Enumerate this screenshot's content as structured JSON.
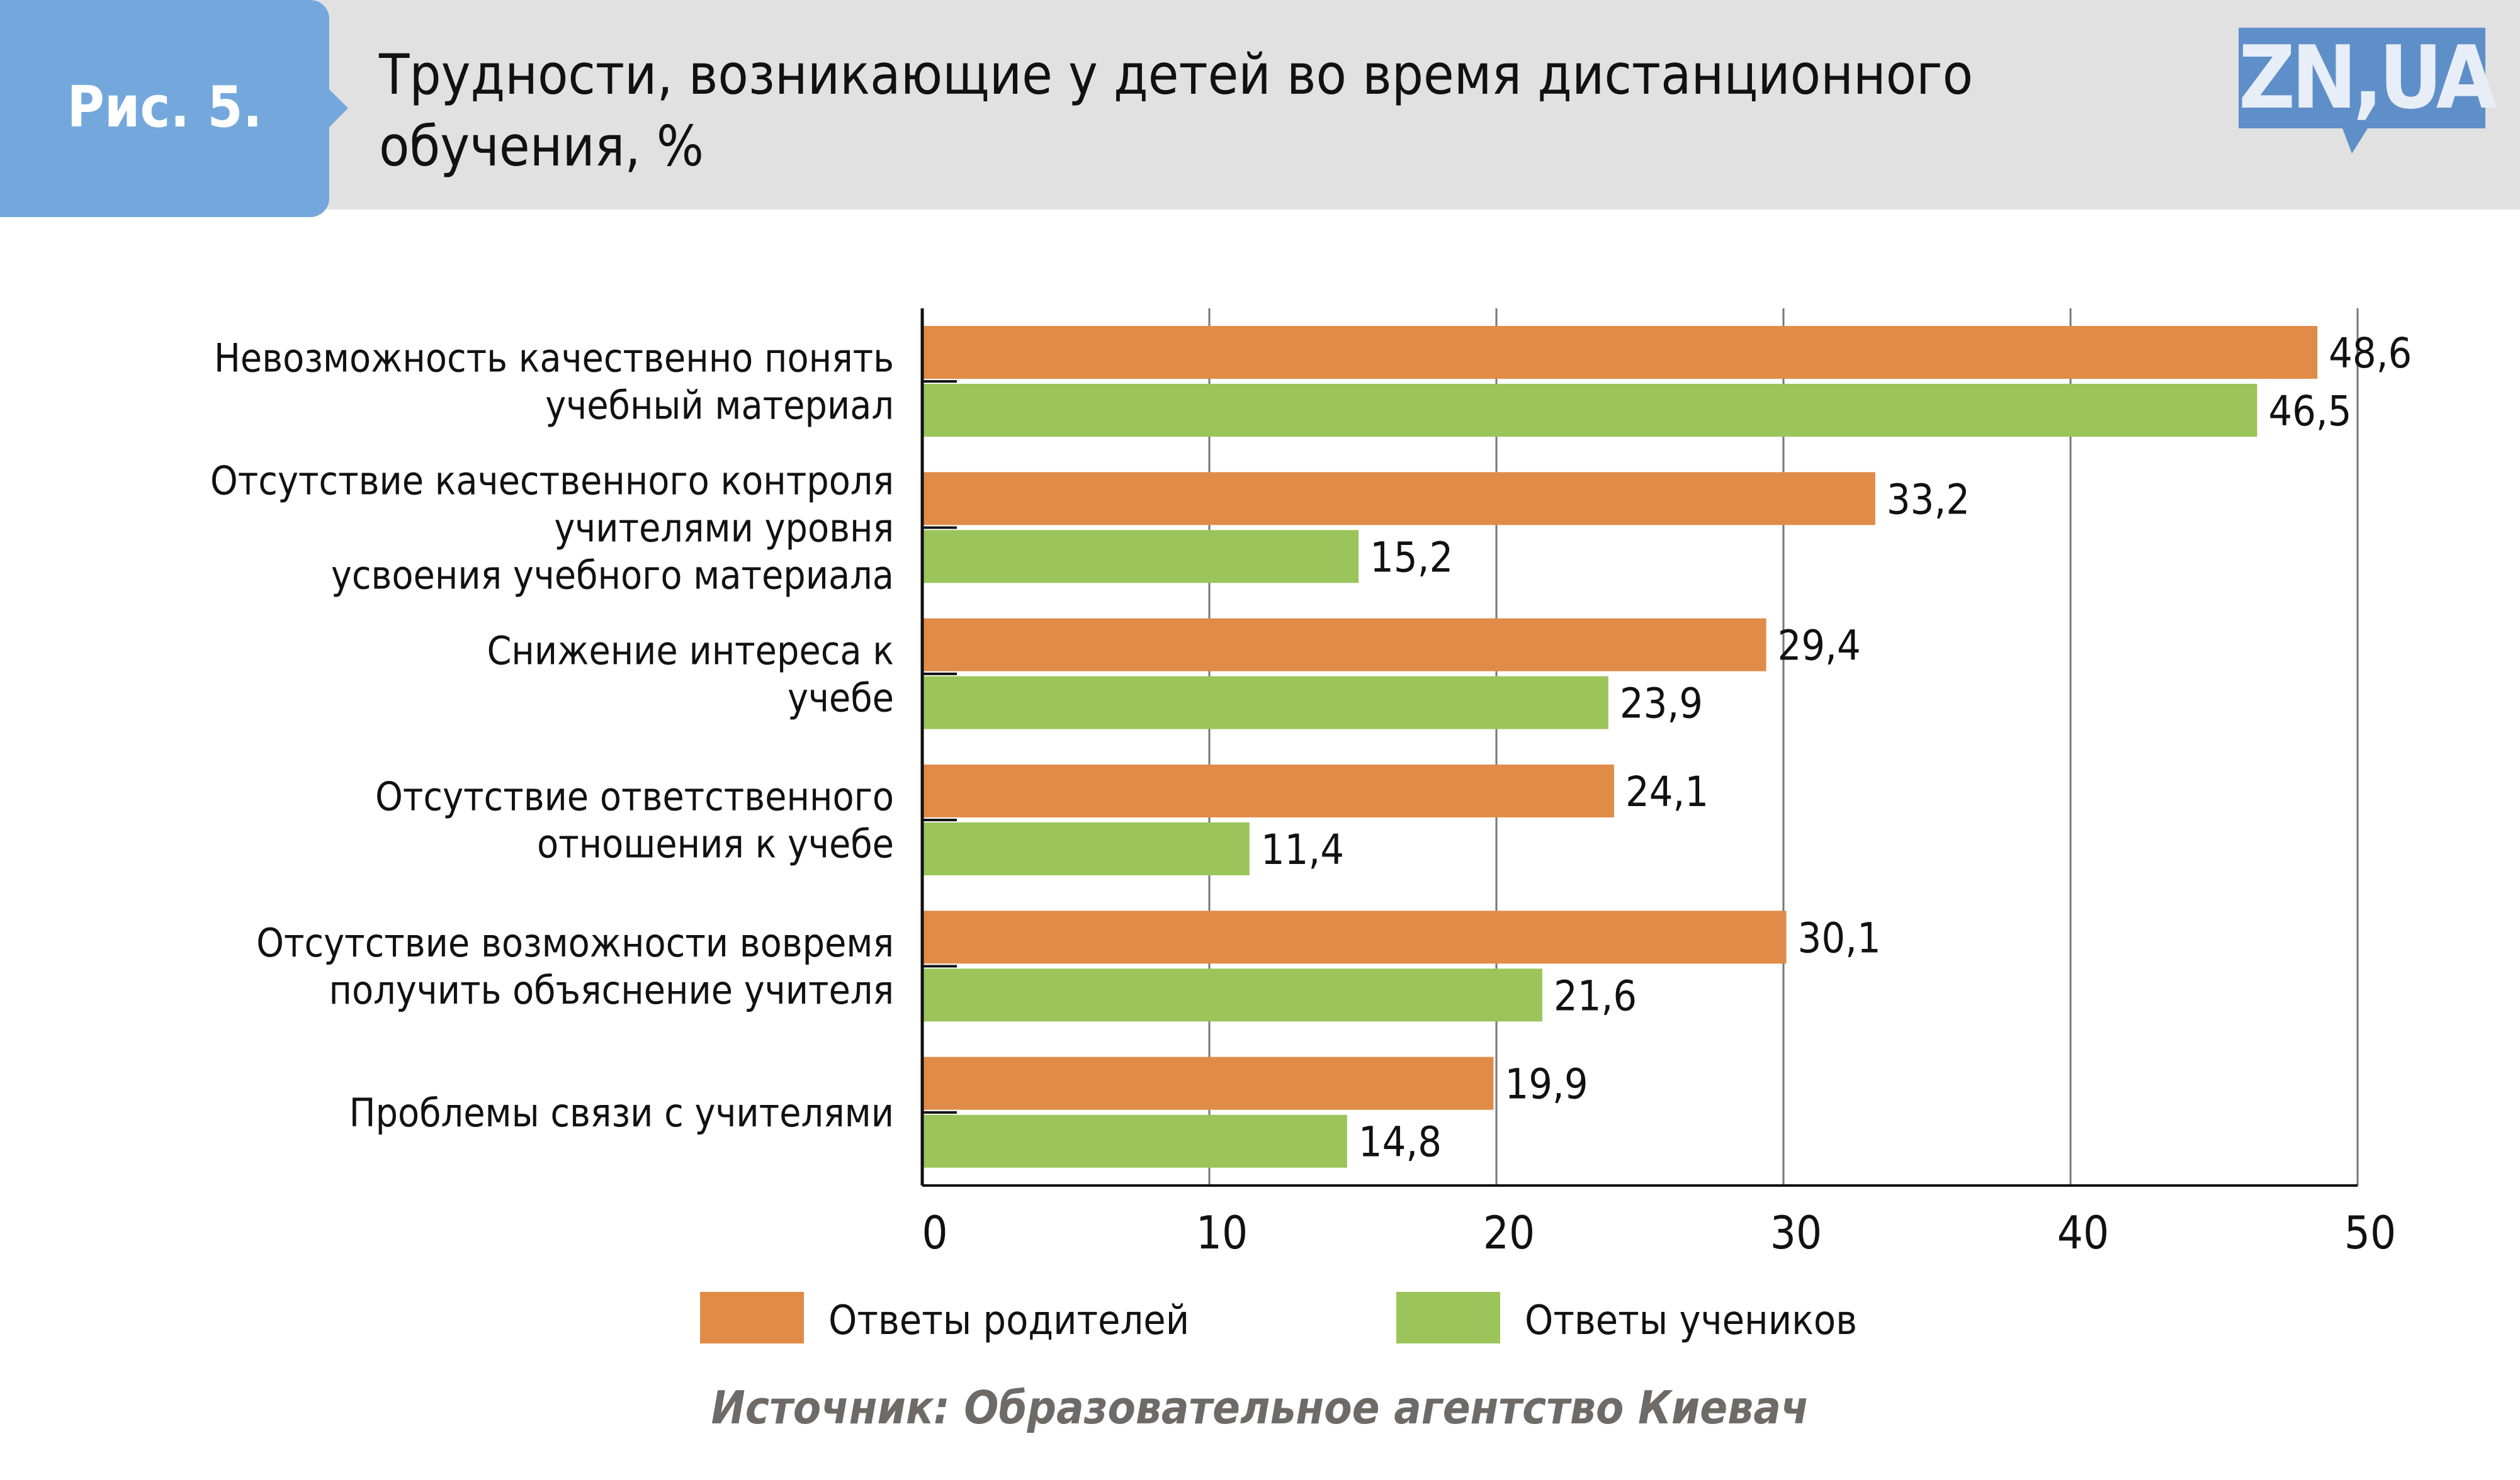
{
  "header": {
    "figure_label": "Рис. 5.",
    "title_line1": "Трудности, возникающие у детей во время дистанционного",
    "title_line2": "обучения, %",
    "logo": "ZN,UA"
  },
  "source": "Источник: Образовательное агентство Киевач",
  "colors": {
    "parents": "#e08c48",
    "students": "#9bc45a",
    "grid": "#777777"
  },
  "chart_data": {
    "type": "bar",
    "orientation": "horizontal",
    "title": "Трудности, возникающие у детей во время дистанционного обучения, %",
    "categories": [
      [
        "Невозможность качественно понять",
        "учебный материал"
      ],
      [
        "Отсутствие качественного контроля",
        "учителями уровня",
        "усвоения учебного материала"
      ],
      [
        "Снижение интереса к",
        "учебе"
      ],
      [
        "Отсутствие ответственного",
        "отношения к учебе"
      ],
      [
        "Отсутствие возможности вовремя",
        "получить объяснение учителя"
      ],
      [
        "Проблемы связи с учителями"
      ]
    ],
    "series": [
      {
        "name": "Ответы родителей",
        "values": [
          48.6,
          33.2,
          29.4,
          24.1,
          30.1,
          19.9
        ],
        "labels": [
          "48,6",
          "33,2",
          "29,4",
          "24,1",
          "30,1",
          "19,9"
        ]
      },
      {
        "name": "Ответы учеников",
        "values": [
          46.5,
          15.2,
          23.9,
          11.4,
          21.6,
          14.8
        ],
        "labels": [
          "46,5",
          "15,2",
          "23,9",
          "11,4",
          "21,6",
          "14,8"
        ]
      }
    ],
    "xlim": [
      0,
      50
    ],
    "xticks": [
      "0",
      "10",
      "20",
      "30",
      "40",
      "50"
    ],
    "grid": true,
    "legend": "bottom"
  }
}
